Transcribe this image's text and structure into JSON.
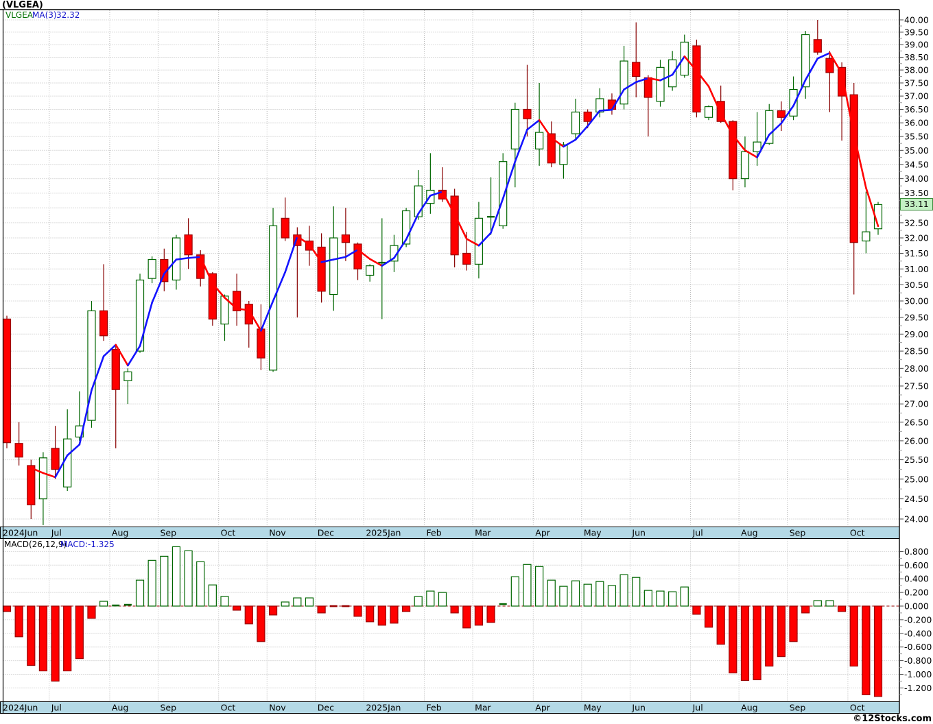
{
  "title": "(VLGEA)",
  "price_legend": {
    "symbol": "VLGEA",
    "ma_label": "MA(3)",
    "ma_value": "32.32"
  },
  "macd_legend": {
    "label": "MACD(26,12,9)",
    "value_label": "MACD:-1.325"
  },
  "price_badge": "33.11",
  "footer": "©12Stocks.com",
  "colors": {
    "bull_border": "#006600",
    "bull_fill": "#ffffff",
    "bear_fill": "#ff0000",
    "bear_border": "#990000",
    "bear_wick": "#880000",
    "ma_up": "#1414ff",
    "ma_down": "#ff0000",
    "grid": "#b8b8b8",
    "zero_line": "#990000",
    "month_strip": "#b4d9e6",
    "badge_bg": "#c3f0c3",
    "badge_border": "#3c8c3c",
    "axis_text": "#000000"
  },
  "months": [
    {
      "label": "2024Jun",
      "start": 0
    },
    {
      "label": "Jul",
      "start": 4
    },
    {
      "label": "Aug",
      "start": 9
    },
    {
      "label": "Sep",
      "start": 13
    },
    {
      "label": "Oct",
      "start": 18
    },
    {
      "label": "Nov",
      "start": 22
    },
    {
      "label": "Dec",
      "start": 26
    },
    {
      "label": "2025Jan",
      "start": 30
    },
    {
      "label": "Feb",
      "start": 35
    },
    {
      "label": "Mar",
      "start": 39
    },
    {
      "label": "Apr",
      "start": 44
    },
    {
      "label": "May",
      "start": 48
    },
    {
      "label": "Jun",
      "start": 52
    },
    {
      "label": "Jul",
      "start": 57
    },
    {
      "label": "Aug",
      "start": 61
    },
    {
      "label": "Sep",
      "start": 65
    },
    {
      "label": "Oct",
      "start": 70
    }
  ],
  "chart_data": [
    {
      "type": "candlestick",
      "title": "(VLGEA) weekly candlestick price chart with MA(3)",
      "ylabel": "Price",
      "ylim": [
        24.0,
        40.0
      ],
      "y_scale": "log",
      "grid": true,
      "tick_step": 0.5,
      "minor_tick_step": 0.25,
      "axis_labels": [
        "40.00",
        "39.50",
        "39.00",
        "38.50",
        "38.00",
        "37.50",
        "37.00",
        "36.50",
        "36.00",
        "35.50",
        "35.00",
        "34.50",
        "34.00",
        "33.50",
        "32.50",
        "32.00",
        "31.50",
        "31.00",
        "30.50",
        "30.00",
        "29.50",
        "29.00",
        "28.50",
        "28.00",
        "27.50",
        "27.00",
        "26.50",
        "26.00",
        "25.50",
        "25.00",
        "24.50",
        "24.00"
      ],
      "last_price": 33.11,
      "ma3_last": 32.32,
      "series": {
        "open": [
          29.45,
          25.93,
          25.35,
          24.5,
          25.8,
          24.8,
          26.1,
          26.55,
          29.7,
          28.55,
          27.65,
          28.5,
          30.7,
          31.3,
          30.65,
          32.1,
          31.45,
          30.85,
          29.3,
          30.3,
          29.9,
          29.15,
          27.95,
          32.65,
          32.1,
          31.9,
          31.7,
          30.2,
          32.1,
          31.8,
          30.8,
          31.2,
          31.25,
          31.8,
          32.7,
          33.15,
          33.6,
          33.4,
          31.5,
          31.15,
          32.7,
          32.4,
          35.05,
          36.5,
          35.05,
          35.6,
          34.5,
          35.6,
          36.4,
          36.4,
          36.85,
          36.7,
          38.3,
          37.7,
          36.8,
          37.35,
          37.8,
          38.95,
          36.2,
          36.8,
          36.05,
          34.0,
          34.95,
          35.25,
          36.45,
          36.25,
          37.35,
          39.2,
          38.45,
          38.1,
          37.05,
          31.9,
          32.3
        ],
        "high": [
          29.55,
          26.5,
          25.5,
          25.7,
          26.4,
          26.85,
          27.35,
          30.0,
          31.15,
          28.7,
          28.0,
          30.85,
          31.4,
          31.65,
          32.1,
          32.65,
          31.6,
          30.9,
          30.2,
          30.85,
          30.0,
          29.9,
          33.0,
          33.35,
          32.35,
          32.4,
          32.15,
          33.05,
          33.0,
          31.85,
          31.15,
          32.65,
          32.1,
          33.0,
          34.3,
          34.9,
          34.4,
          33.65,
          32.2,
          33.2,
          34.05,
          34.9,
          36.75,
          38.2,
          37.5,
          36.05,
          35.3,
          36.9,
          36.5,
          37.3,
          37.1,
          38.95,
          39.9,
          37.8,
          38.4,
          38.75,
          39.4,
          39.2,
          36.65,
          37.4,
          36.1,
          35.5,
          36.4,
          36.7,
          36.8,
          37.75,
          39.55,
          40.0,
          38.75,
          38.3,
          37.5,
          33.55,
          33.2
        ],
        "low": [
          25.8,
          25.35,
          24.0,
          23.85,
          25.0,
          24.7,
          26.0,
          26.35,
          28.8,
          25.8,
          27.0,
          28.45,
          30.55,
          30.3,
          30.35,
          31.0,
          30.45,
          29.25,
          28.8,
          29.25,
          28.6,
          27.95,
          27.9,
          31.9,
          29.5,
          31.1,
          29.95,
          29.7,
          31.25,
          30.65,
          30.6,
          29.45,
          30.9,
          31.7,
          32.6,
          32.8,
          33.2,
          31.05,
          30.95,
          30.7,
          32.1,
          32.3,
          33.7,
          35.5,
          34.45,
          34.4,
          34.0,
          35.4,
          35.8,
          36.2,
          36.3,
          36.5,
          36.95,
          35.5,
          36.6,
          37.2,
          37.7,
          36.2,
          36.1,
          36.0,
          33.6,
          33.7,
          34.45,
          35.2,
          35.7,
          36.1,
          36.9,
          38.6,
          36.4,
          35.35,
          30.2,
          31.5,
          32.1
        ],
        "close": [
          25.95,
          25.57,
          24.35,
          25.55,
          25.25,
          26.05,
          26.4,
          29.7,
          28.95,
          27.4,
          27.9,
          30.65,
          31.3,
          30.6,
          32.0,
          31.45,
          30.7,
          29.45,
          30.15,
          29.7,
          29.3,
          28.3,
          32.4,
          32.0,
          31.75,
          31.6,
          30.3,
          32.0,
          31.85,
          31.0,
          31.1,
          31.2,
          31.75,
          32.9,
          33.75,
          33.6,
          33.3,
          31.45,
          31.15,
          32.65,
          32.7,
          34.6,
          36.5,
          36.15,
          35.65,
          34.55,
          35.2,
          36.4,
          36.05,
          36.9,
          36.5,
          38.35,
          37.75,
          36.95,
          38.1,
          38.4,
          39.1,
          36.4,
          36.6,
          36.05,
          34.0,
          34.95,
          35.3,
          36.45,
          36.2,
          37.25,
          39.4,
          38.7,
          37.9,
          37.0,
          31.85,
          32.2,
          33.11
        ]
      },
      "overlay": {
        "name": "MA(3)",
        "window": 3,
        "color_rising": "#1414ff",
        "color_falling": "#ff0000"
      }
    },
    {
      "type": "bar",
      "title": "MACD(26,12,9) histogram",
      "ylim": [
        -1.4,
        0.9
      ],
      "tick_step": 0.2,
      "minor_tick_step": 0.1,
      "axis_labels": [
        "0.800",
        "0.600",
        "0.400",
        "0.200",
        "0.000",
        "-0.200",
        "-0.400",
        "-0.600",
        "-0.800",
        "-1.000",
        "-1.200"
      ],
      "last_value": -1.325,
      "values": [
        -0.08,
        -0.45,
        -0.87,
        -0.95,
        -1.1,
        -0.95,
        -0.77,
        -0.18,
        0.07,
        0.01,
        0.02,
        0.38,
        0.67,
        0.73,
        0.87,
        0.81,
        0.65,
        0.31,
        0.14,
        -0.06,
        -0.26,
        -0.52,
        -0.13,
        0.06,
        0.12,
        0.12,
        -0.1,
        -0.01,
        -0.01,
        -0.15,
        -0.23,
        -0.28,
        -0.25,
        -0.08,
        0.14,
        0.22,
        0.2,
        -0.1,
        -0.32,
        -0.28,
        -0.24,
        0.03,
        0.43,
        0.61,
        0.58,
        0.38,
        0.29,
        0.37,
        0.32,
        0.36,
        0.3,
        0.46,
        0.42,
        0.23,
        0.22,
        0.21,
        0.28,
        -0.12,
        -0.31,
        -0.56,
        -0.98,
        -1.09,
        -1.08,
        -0.88,
        -0.74,
        -0.52,
        -0.1,
        0.08,
        0.08,
        -0.08,
        -0.88,
        -1.3,
        -1.325
      ]
    }
  ]
}
